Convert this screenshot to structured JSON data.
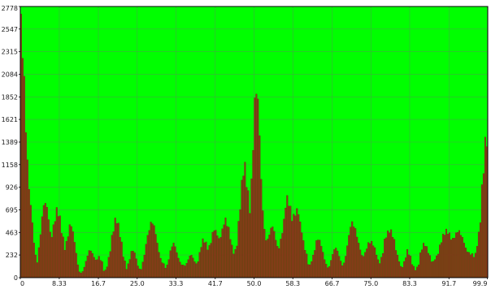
{
  "colors": {
    "plot_background": "#00ff00",
    "grid": "#3fae3f",
    "bar_fill": "#8b3a1a",
    "bar_stroke": "#5a1e0a",
    "frame": "#000000",
    "page_background": "#ffffff"
  },
  "chart_data": {
    "type": "bar",
    "title": "",
    "xlabel": "",
    "ylabel": "",
    "grid": true,
    "xlim": [
      0,
      100
    ],
    "ylim": [
      0,
      2778
    ],
    "x_ticks": [
      {
        "value": 0,
        "label": "0"
      },
      {
        "value": 8.33,
        "label": "8.33"
      },
      {
        "value": 16.7,
        "label": "16.7"
      },
      {
        "value": 25.0,
        "label": "25.0"
      },
      {
        "value": 33.3,
        "label": "33.3"
      },
      {
        "value": 41.7,
        "label": "41.7"
      },
      {
        "value": 50.0,
        "label": "50.0"
      },
      {
        "value": 58.3,
        "label": "58.3"
      },
      {
        "value": 66.7,
        "label": "66.7"
      },
      {
        "value": 75.0,
        "label": "75.0"
      },
      {
        "value": 83.3,
        "label": "83.3"
      },
      {
        "value": 91.7,
        "label": "91.7"
      },
      {
        "value": 99.9,
        "label": "99.9"
      }
    ],
    "y_ticks": [
      {
        "value": 0,
        "label": "0"
      },
      {
        "value": 232,
        "label": "232"
      },
      {
        "value": 463,
        "label": "463"
      },
      {
        "value": 695,
        "label": "695"
      },
      {
        "value": 926,
        "label": "926"
      },
      {
        "value": 1158,
        "label": "1158"
      },
      {
        "value": 1389,
        "label": "1389"
      },
      {
        "value": 1621,
        "label": "1621"
      },
      {
        "value": 1852,
        "label": "1852"
      },
      {
        "value": 2084,
        "label": "2084"
      },
      {
        "value": 2315,
        "label": "2315"
      },
      {
        "value": 2547,
        "label": "2547"
      },
      {
        "value": 2778,
        "label": "2778"
      }
    ],
    "envelope": [
      [
        0.0,
        2778
      ],
      [
        0.6,
        2400
      ],
      [
        1.2,
        1600
      ],
      [
        1.8,
        1000
      ],
      [
        2.4,
        700
      ],
      [
        3.0,
        350
      ],
      [
        3.6,
        150
      ],
      [
        4.2,
        400
      ],
      [
        4.8,
        700
      ],
      [
        5.4,
        820
      ],
      [
        6.0,
        650
      ],
      [
        6.6,
        420
      ],
      [
        7.2,
        550
      ],
      [
        7.8,
        720
      ],
      [
        8.4,
        650
      ],
      [
        9.0,
        460
      ],
      [
        9.6,
        300
      ],
      [
        10.2,
        450
      ],
      [
        10.8,
        580
      ],
      [
        11.4,
        460
      ],
      [
        12.0,
        250
      ],
      [
        12.6,
        60
      ],
      [
        13.2,
        50
      ],
      [
        13.8,
        120
      ],
      [
        14.4,
        240
      ],
      [
        15.0,
        300
      ],
      [
        15.6,
        240
      ],
      [
        16.2,
        180
      ],
      [
        16.8,
        220
      ],
      [
        17.4,
        180
      ],
      [
        18.0,
        60
      ],
      [
        18.6,
        120
      ],
      [
        19.2,
        280
      ],
      [
        19.8,
        480
      ],
      [
        20.4,
        620
      ],
      [
        21.0,
        560
      ],
      [
        21.6,
        380
      ],
      [
        22.2,
        200
      ],
      [
        22.8,
        90
      ],
      [
        23.4,
        200
      ],
      [
        24.0,
        300
      ],
      [
        24.6,
        250
      ],
      [
        25.2,
        120
      ],
      [
        25.8,
        80
      ],
      [
        26.4,
        200
      ],
      [
        27.0,
        380
      ],
      [
        27.6,
        520
      ],
      [
        28.2,
        600
      ],
      [
        28.8,
        520
      ],
      [
        29.4,
        350
      ],
      [
        30.0,
        200
      ],
      [
        30.6,
        150
      ],
      [
        31.2,
        100
      ],
      [
        31.8,
        200
      ],
      [
        32.4,
        340
      ],
      [
        33.0,
        360
      ],
      [
        33.6,
        250
      ],
      [
        34.2,
        160
      ],
      [
        34.8,
        130
      ],
      [
        35.4,
        130
      ],
      [
        36.0,
        200
      ],
      [
        36.6,
        250
      ],
      [
        37.2,
        180
      ],
      [
        37.8,
        140
      ],
      [
        38.4,
        260
      ],
      [
        39.0,
        400
      ],
      [
        39.6,
        380
      ],
      [
        40.2,
        300
      ],
      [
        40.8,
        380
      ],
      [
        41.4,
        520
      ],
      [
        42.0,
        480
      ],
      [
        42.6,
        400
      ],
      [
        43.2,
        500
      ],
      [
        43.8,
        620
      ],
      [
        44.4,
        560
      ],
      [
        45.0,
        420
      ],
      [
        45.6,
        260
      ],
      [
        46.2,
        300
      ],
      [
        46.8,
        600
      ],
      [
        47.4,
        1000
      ],
      [
        48.0,
        1200
      ],
      [
        48.6,
        950
      ],
      [
        49.2,
        700
      ],
      [
        49.8,
        1400
      ],
      [
        50.4,
        2050
      ],
      [
        51.0,
        1800
      ],
      [
        51.6,
        1000
      ],
      [
        52.2,
        500
      ],
      [
        52.8,
        380
      ],
      [
        53.4,
        480
      ],
      [
        54.0,
        560
      ],
      [
        54.6,
        420
      ],
      [
        55.2,
        300
      ],
      [
        55.8,
        400
      ],
      [
        56.4,
        600
      ],
      [
        57.0,
        850
      ],
      [
        57.6,
        780
      ],
      [
        58.2,
        620
      ],
      [
        58.8,
        680
      ],
      [
        59.4,
        720
      ],
      [
        60.0,
        560
      ],
      [
        60.6,
        380
      ],
      [
        61.2,
        250
      ],
      [
        61.8,
        120
      ],
      [
        62.4,
        180
      ],
      [
        63.0,
        300
      ],
      [
        63.6,
        420
      ],
      [
        64.2,
        380
      ],
      [
        64.8,
        260
      ],
      [
        65.4,
        140
      ],
      [
        66.0,
        100
      ],
      [
        66.6,
        200
      ],
      [
        67.2,
        310
      ],
      [
        67.8,
        300
      ],
      [
        68.4,
        200
      ],
      [
        69.0,
        120
      ],
      [
        69.6,
        220
      ],
      [
        70.2,
        420
      ],
      [
        70.8,
        580
      ],
      [
        71.4,
        560
      ],
      [
        72.0,
        450
      ],
      [
        72.6,
        320
      ],
      [
        73.2,
        220
      ],
      [
        73.8,
        260
      ],
      [
        74.4,
        360
      ],
      [
        75.0,
        380
      ],
      [
        75.6,
        350
      ],
      [
        76.2,
        250
      ],
      [
        76.8,
        150
      ],
      [
        77.4,
        220
      ],
      [
        78.0,
        400
      ],
      [
        78.6,
        480
      ],
      [
        79.2,
        500
      ],
      [
        79.8,
        440
      ],
      [
        80.4,
        300
      ],
      [
        81.0,
        180
      ],
      [
        81.6,
        100
      ],
      [
        82.2,
        170
      ],
      [
        82.8,
        290
      ],
      [
        83.4,
        230
      ],
      [
        84.0,
        130
      ],
      [
        84.6,
        80
      ],
      [
        85.2,
        140
      ],
      [
        85.8,
        300
      ],
      [
        86.4,
        360
      ],
      [
        87.0,
        320
      ],
      [
        87.6,
        230
      ],
      [
        88.2,
        160
      ],
      [
        88.8,
        200
      ],
      [
        89.4,
        260
      ],
      [
        90.0,
        380
      ],
      [
        90.6,
        460
      ],
      [
        91.2,
        500
      ],
      [
        91.8,
        460
      ],
      [
        92.4,
        400
      ],
      [
        93.0,
        440
      ],
      [
        93.6,
        500
      ],
      [
        94.2,
        470
      ],
      [
        94.8,
        400
      ],
      [
        95.4,
        300
      ],
      [
        96.0,
        260
      ],
      [
        96.6,
        250
      ],
      [
        97.2,
        220
      ],
      [
        97.8,
        350
      ],
      [
        98.4,
        600
      ],
      [
        99.0,
        1100
      ],
      [
        99.6,
        1480
      ],
      [
        100.0,
        1420
      ]
    ]
  }
}
